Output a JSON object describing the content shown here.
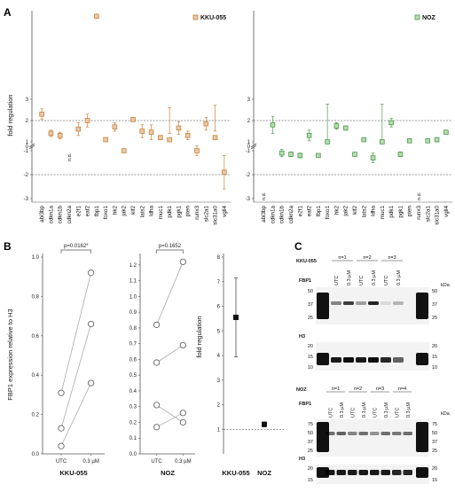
{
  "panels": {
    "a": "A",
    "b": "B",
    "c": "C"
  },
  "chart_data": [
    {
      "type": "scatter",
      "panel": "A-left",
      "legend": "KKU-055",
      "ylabel": "fold regulation",
      "yticks": [
        "3",
        "2",
        "1",
        "0",
        "-1",
        "-2",
        "-3"
      ],
      "categories": [
        "abi3bp",
        "cdkn1a",
        "cdkn1b",
        "cdkn2a",
        "e2f1",
        "eaf2",
        "fbp1",
        "foxo1",
        "hk2",
        "jak2",
        "klf2",
        "lats2",
        "ldha",
        "muc1",
        "pdk1",
        "pgk1",
        "pten",
        "runx3",
        "slc2a1",
        "slc31a0",
        "vgll4"
      ],
      "values": [
        2.3,
        1.4,
        1.3,
        null,
        1.6,
        2.0,
        6.9,
        1.1,
        1.7,
        -1.0,
        2.05,
        1.5,
        1.45,
        1.2,
        1.1,
        1.65,
        1.3,
        -1.0,
        1.85,
        1.2,
        -1.9
      ],
      "errors": [
        0.25,
        0.15,
        0.15,
        null,
        0.3,
        0.3,
        0.1,
        0.05,
        0.2,
        0.05,
        0.1,
        0.3,
        0.35,
        0.1,
        0.3,
        0.3,
        0.2,
        0.2,
        0.3,
        0.3,
        0.7
      ],
      "labels": [
        "",
        "",
        "",
        "n.d.",
        "",
        "",
        "",
        "",
        "",
        "",
        "",
        "",
        "",
        "",
        "",
        "",
        "",
        "",
        "",
        "",
        ""
      ],
      "color": "#c8823c",
      "fill": "#e9c9a8"
    },
    {
      "type": "scatter",
      "panel": "A-right",
      "legend": "NOZ",
      "yticks": [
        "3",
        "2",
        "1",
        "0",
        "-1",
        "-2",
        "-3"
      ],
      "categories": [
        "abi3bp",
        "cdkn1a",
        "cdkn1b",
        "cdkn2a",
        "e2f1",
        "eaf2",
        "fbp1",
        "foxo1",
        "hk2",
        "jak2",
        "klf2",
        "lats2",
        "ldha",
        "muc1",
        "pdk1",
        "pgk1",
        "pten",
        "runx3",
        "slc2a1",
        "slc31a0",
        "vgll4"
      ],
      "values": [
        null,
        1.8,
        -1.1,
        -1.15,
        -1.2,
        1.3,
        -1.2,
        1.0,
        1.75,
        1.65,
        -1.15,
        1.1,
        -1.3,
        1.0,
        1.9,
        -1.15,
        1.05,
        null,
        1.05,
        1.1,
        1.45
      ],
      "errors": [
        null,
        0.4,
        0.15,
        0.1,
        0.1,
        0.25,
        0.05,
        0.05,
        0.15,
        0.1,
        0.05,
        0.05,
        0.2,
        0.05,
        0.2,
        0.1,
        0.05,
        null,
        0.05,
        0.1,
        0.1
      ],
      "labels": [
        "n.d.",
        "",
        "",
        "",
        "",
        "",
        "",
        "",
        "",
        "",
        "",
        "",
        "",
        "",
        "",
        "",
        "",
        "n.d.",
        "",
        "",
        ""
      ],
      "color": "#4f9a4f",
      "fill": "#b7dbb0"
    },
    {
      "type": "line",
      "panel": "B-KKU-055",
      "ylabel": "FBP1 expression relative to H3",
      "xlabel": "KKU-055",
      "categories": [
        "UTC",
        "0.3 µM"
      ],
      "ylim": [
        0,
        1.0
      ],
      "yticks": [
        "0.0",
        "0.2",
        "0.4",
        "0.6",
        "0.8",
        "1.0"
      ],
      "series": [
        {
          "values": [
            0.31,
            0.92
          ]
        },
        {
          "values": [
            0.13,
            0.66
          ]
        },
        {
          "values": [
            0.04,
            0.36
          ]
        }
      ],
      "annotation": "p=0.0162*"
    },
    {
      "type": "line",
      "panel": "B-NOZ",
      "xlabel": "NOZ",
      "categories": [
        "UTC",
        "0.3 µM"
      ],
      "ylim": [
        0,
        1.25
      ],
      "yticks": [
        "0.0",
        "0.1",
        "0.2",
        "0.3",
        "0.4",
        "0.5",
        "0.6",
        "0.7",
        "0.8",
        "0.9",
        "1.0",
        "1.1",
        "1.2"
      ],
      "series": [
        {
          "values": [
            0.82,
            1.22
          ]
        },
        {
          "values": [
            0.58,
            0.69
          ]
        },
        {
          "values": [
            0.31,
            0.2
          ]
        },
        {
          "values": [
            0.17,
            0.26
          ]
        }
      ],
      "annotation": "p=0.1652"
    },
    {
      "type": "scatter",
      "panel": "B-fold",
      "ylabel": "fold regulation",
      "categories": [
        "KKU-055",
        "NOZ"
      ],
      "values": [
        5.55,
        1.2
      ],
      "errors": [
        1.6,
        0.1
      ],
      "ylim": [
        0,
        8
      ],
      "yticks": [
        "0",
        "1",
        "2",
        "3",
        "4",
        "5",
        "6",
        "7",
        "8"
      ]
    }
  ],
  "blots": {
    "kku": {
      "cell_line": "KKU-055",
      "groups": [
        "n=1",
        "n=2",
        "n=3"
      ],
      "lanes": [
        "UTC",
        "0.3 µM",
        "UTC",
        "0.3 µM",
        "UTC",
        "0.3 µM"
      ],
      "fbp1_label": "FBP1",
      "h3_label": "H3",
      "kda": "kDa",
      "fbp1_markers_left": [
        "50",
        "37",
        "25"
      ],
      "fbp1_markers_right": [
        "50",
        "37",
        "25"
      ],
      "h3_markers_left": [
        "20",
        "15",
        "10"
      ],
      "h3_markers_right": [
        "20",
        "15",
        "10"
      ]
    },
    "noz": {
      "cell_line": "NOZ",
      "groups": [
        "n=1",
        "n=2",
        "n=3",
        "n=4"
      ],
      "lanes": [
        "UTC",
        "0.3 µM",
        "UTC",
        "0.3 µM",
        "UTC",
        "0.3 µM",
        "UTC",
        "0.3 µM"
      ],
      "fbp1_label": "FBP1",
      "h3_label": "H3",
      "kda": "kDa",
      "fbp1_markers_left": [
        "75",
        "50",
        "37",
        "25"
      ],
      "fbp1_markers_right": [
        "75",
        "50",
        "37",
        "25"
      ],
      "h3_markers_left": [
        "20",
        "15"
      ],
      "h3_markers_right": [
        "20",
        "15"
      ]
    }
  }
}
